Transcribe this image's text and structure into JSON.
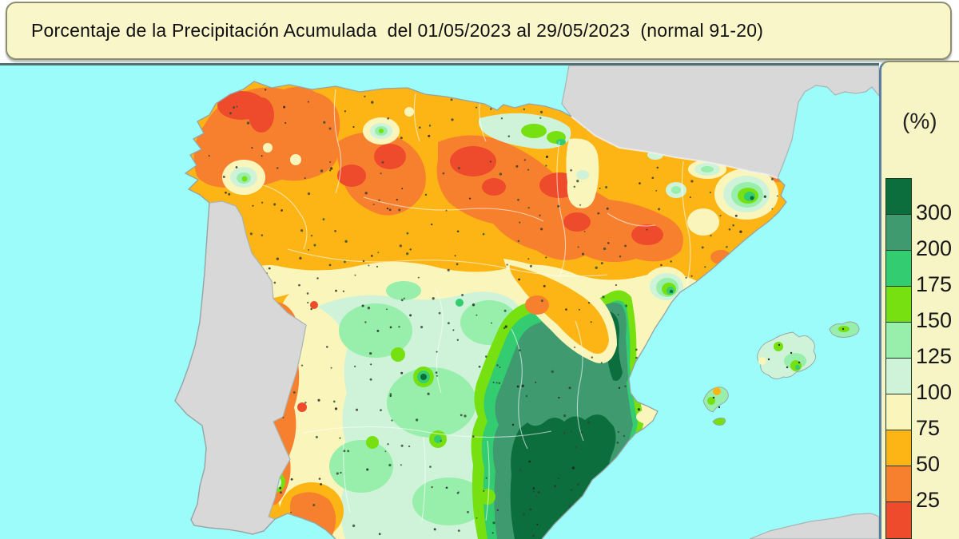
{
  "title": {
    "text": "Porcentaje de la Precipitación Acumulada  del 01/05/2023 al 29/05/2023  (normal 91-20)"
  },
  "legend": {
    "unit_label": "(%)",
    "scale": [
      {
        "color": "#0d6e3d",
        "label": "300"
      },
      {
        "color": "#3f9b6f",
        "label": "200"
      },
      {
        "color": "#33cc70",
        "label": "175"
      },
      {
        "color": "#77e010",
        "label": "150"
      },
      {
        "color": "#98eeab",
        "label": "125"
      },
      {
        "color": "#cef3d8",
        "label": "100"
      },
      {
        "color": "#faf6bb",
        "label": "75"
      },
      {
        "color": "#fcb515",
        "label": "50"
      },
      {
        "color": "#f7802e",
        "label": "25"
      },
      {
        "color": "#ee4a2c",
        "label": ""
      }
    ]
  },
  "map": {
    "regions": {
      "data_area": "spain-and-balearic-islands",
      "no_data_areas": [
        "portugal",
        "france",
        "north-africa"
      ]
    }
  },
  "colors": {
    "sea": "#9bfcfa",
    "no_data_land": "#d8d8d8",
    "titlebar_bg": "#f9f6ca",
    "panel_bg": "#f7f4c6",
    "frame_border": "#8e8e6e",
    "map_border": "#507173",
    "panel_border": "#5b7fa3"
  }
}
